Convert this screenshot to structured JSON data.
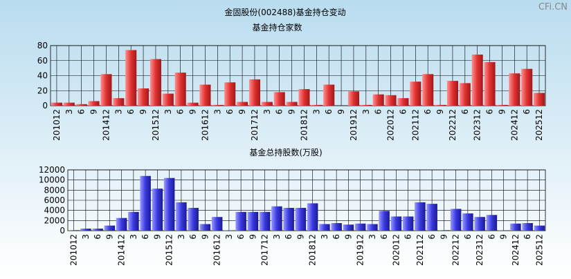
{
  "title": "金固股份(002488)基金持仓变动",
  "watermark": "CFi.CN",
  "chart_data": [
    {
      "type": "bar",
      "title": "基金持仓家数",
      "color": "#e03232",
      "categories": [
        "201012",
        "3",
        "6",
        "9",
        "201412",
        "3",
        "6",
        "9",
        "201512",
        "3",
        "6",
        "9",
        "201612",
        "3",
        "6",
        "9",
        "201712",
        "3",
        "6",
        "9",
        "201812",
        "3",
        "6",
        "9",
        "201912",
        "3",
        "6",
        "202012",
        "6",
        "202112",
        "6",
        "9",
        "202212",
        "6",
        "202312",
        "6",
        "9",
        "202412",
        "6",
        "202512"
      ],
      "values": [
        4,
        4,
        2,
        6,
        42,
        10,
        74,
        23,
        62,
        16,
        44,
        4,
        28,
        1,
        31,
        5,
        35,
        5,
        18,
        5,
        22,
        1,
        28,
        0,
        19,
        1,
        15,
        14,
        10,
        32,
        42,
        1,
        33,
        30,
        68,
        58,
        1,
        43,
        49,
        17
      ],
      "ylim": [
        0,
        80
      ],
      "yticks": [
        0,
        20,
        40,
        60,
        80
      ],
      "grid": true
    },
    {
      "type": "bar",
      "title": "基金总持股数(万股)",
      "color": "#3a3ae0",
      "categories": [
        "201012",
        "3",
        "6",
        "9",
        "201412",
        "3",
        "6",
        "9",
        "201512",
        "3",
        "6",
        "9",
        "201612",
        "3",
        "6",
        "9",
        "201712",
        "3",
        "6",
        "9",
        "201812",
        "3",
        "6",
        "9",
        "201912",
        "3",
        "6",
        "202012",
        "6",
        "202112",
        "6",
        "9",
        "202212",
        "6",
        "202312",
        "6",
        "9",
        "202412",
        "6",
        "202512"
      ],
      "values": [
        100,
        400,
        400,
        1000,
        2500,
        3700,
        10800,
        8300,
        10400,
        5600,
        4500,
        1300,
        2700,
        50,
        3700,
        3700,
        3700,
        4800,
        4500,
        4500,
        5400,
        1300,
        1500,
        1200,
        1400,
        1300,
        3900,
        2800,
        2800,
        5600,
        5300,
        100,
        4300,
        3400,
        2700,
        3100,
        50,
        1400,
        1500,
        1000
      ],
      "ylim": [
        0,
        12000
      ],
      "yticks": [
        0,
        2000,
        4000,
        6000,
        8000,
        10000,
        12000
      ],
      "grid": true
    }
  ]
}
